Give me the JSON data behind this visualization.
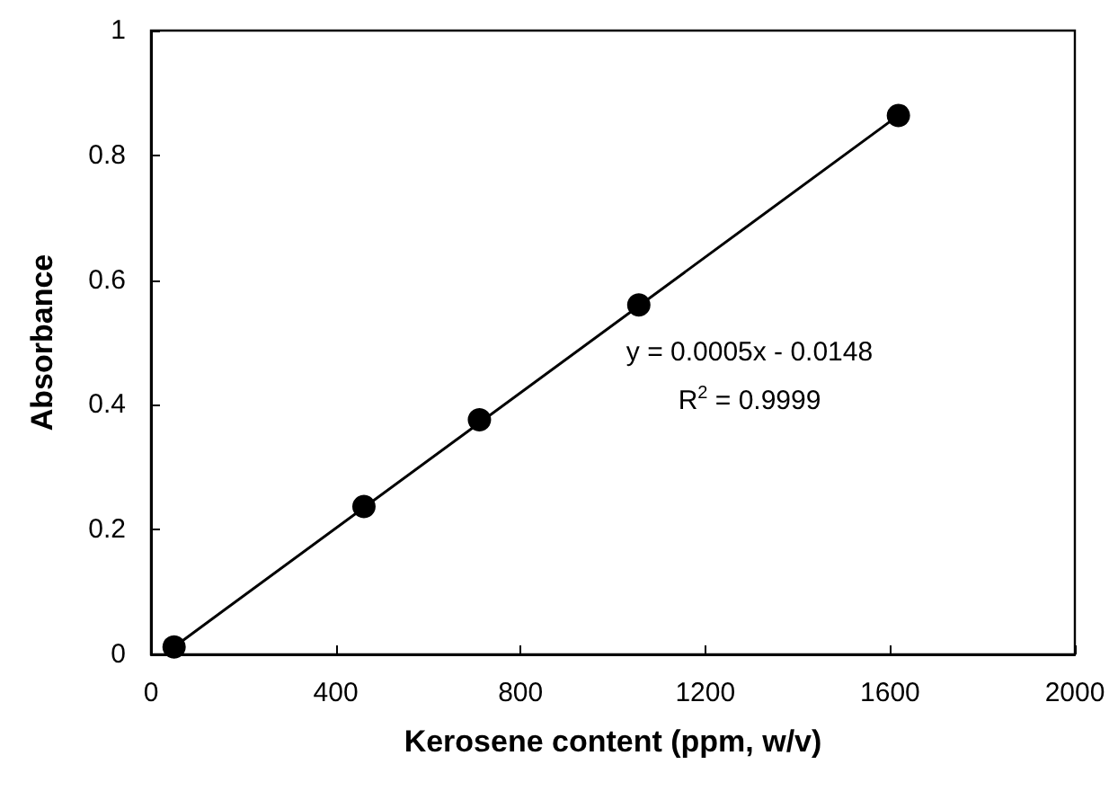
{
  "chart_data": {
    "type": "scatter",
    "xlabel": "Kerosene content (ppm, w/v)",
    "ylabel": "Absorbance",
    "series": [
      {
        "color": "#000000",
        "x": [
          50,
          461,
          711,
          1056,
          1618
        ],
        "values": [
          0.012,
          0.237,
          0.376,
          0.56,
          0.864
        ]
      },
      {
        "type": "line",
        "color": "#000000",
        "x": [
          50,
          1618
        ],
        "values": [
          0.012,
          0.864
        ],
        "marker": "none",
        "line_style": "solid"
      }
    ],
    "marker": "circle",
    "xlim": [
      0,
      2000
    ],
    "xticks": [
      0,
      400,
      800,
      1200,
      1600,
      2000
    ],
    "ylim": [
      0,
      1
    ],
    "yticks": [
      0,
      0.2,
      0.4,
      0.6,
      0.8,
      1
    ],
    "grid": false,
    "annotations": [
      "y = 0.0005x - 0.0148",
      "R$^{2}$ = 0.9999"
    ]
  }
}
